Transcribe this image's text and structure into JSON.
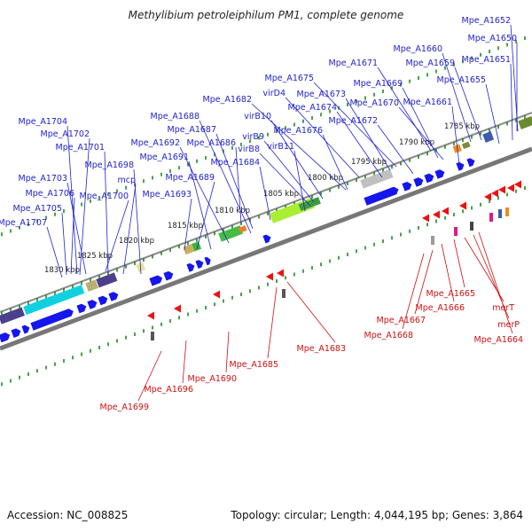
{
  "title": "Methylibium petroleiphilum PM1, complete genome",
  "footer": {
    "accession": "Accession: NC_008825",
    "topology": "Topology: circular; Length: 4,044,195 bp; Genes: 3,864"
  },
  "colors": {
    "forward_gene": "#1515ee",
    "reverse_gene": "#ee1111",
    "forward_label": "#2222cc",
    "reverse_label": "#cc1111",
    "backbone": "#8a8a8a",
    "tick_green": "#1a8a1a"
  },
  "kbp_ticks": [
    "1830 kbp",
    "1825 kbp",
    "1820 kbp",
    "1815 kbp",
    "1810 kbp",
    "1805 kbp",
    "1800 kbp",
    "1795 kbp",
    "1790 kbp",
    "1785 kbp"
  ],
  "forward_genes": [
    "Mpe_A1652",
    "Mpe_A1650",
    "Mpe_A1651",
    "Mpe_A1660",
    "Mpe_A1659",
    "Mpe_A1655",
    "Mpe_A1671",
    "Mpe_A1669",
    "Mpe_A1670",
    "Mpe_A1661",
    "Mpe_A1675",
    "virD4",
    "Mpe_A1673",
    "Mpe_A1674",
    "Mpe_A1672",
    "Mpe_A1682",
    "virB10",
    "Mpe_A1676",
    "virB9",
    "virB8",
    "virB11",
    "Mpe_A1688",
    "Mpe_A1687",
    "Mpe_A1692",
    "Mpe_A1686",
    "Mpe_A1691",
    "Mpe_A1684",
    "Mpe_A1689",
    "Mpe_A1693",
    "Mpe_A1704",
    "Mpe_A1702",
    "Mpe_A1701",
    "Mpe_A1698",
    "mcp",
    "Mpe_A1703",
    "Mpe_A1700",
    "Mpe_A1706",
    "Mpe_A1705",
    "Mpe_A1707"
  ],
  "reverse_genes": [
    "Mpe_A1665",
    "merT",
    "merP",
    "Mpe_A1664",
    "Mpe_A1666",
    "Mpe_A1667",
    "Mpe_A1668",
    "Mpe_A1683",
    "Mpe_A1685",
    "Mpe_A1690",
    "Mpe_A1696",
    "Mpe_A1699"
  ]
}
